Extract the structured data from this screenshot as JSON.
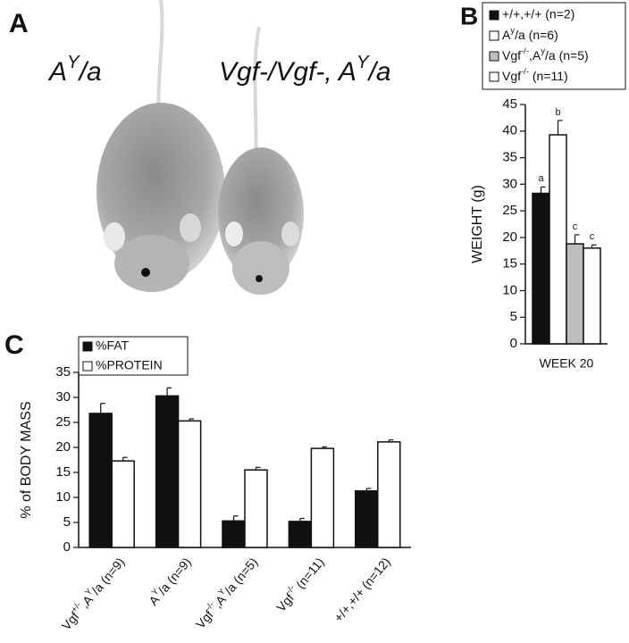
{
  "panels": [
    "A",
    "B",
    "C"
  ],
  "photo_labels": [
    [
      {
        "t": "A"
      },
      {
        "sup": "Y"
      },
      {
        "t": "/a"
      }
    ],
    [
      {
        "t": "Vgf-/Vgf-, A"
      },
      {
        "sup": "Y"
      },
      {
        "t": "/a"
      }
    ]
  ],
  "chart_data": [
    {
      "type": "bar",
      "ylabel": "WEIGHT (g)",
      "categories": [
        "WEEK 20"
      ],
      "ylim": [
        0,
        45
      ],
      "yticks": [
        0,
        5,
        10,
        15,
        20,
        25,
        30,
        35,
        40,
        45
      ],
      "series": [
        {
          "name": "+/+,+/+ (n=2)",
          "color": "#111111",
          "values": [
            28.3
          ],
          "errors": [
            1.2
          ],
          "annotations": [
            "a"
          ]
        },
        {
          "name": [
            {
              "t": "A"
            },
            {
              "sup": "y"
            },
            {
              "t": "/a (n=6)"
            }
          ],
          "color": "#ffffff",
          "values": [
            39.3
          ],
          "errors": [
            2.7
          ],
          "annotations": [
            "b"
          ]
        },
        {
          "name": [
            {
              "t": "Vgf"
            },
            {
              "sup": "-/-"
            },
            {
              "t": ",A"
            },
            {
              "sup": "y"
            },
            {
              "t": "/a (n=5)"
            }
          ],
          "color": "#bdbdbd",
          "values": [
            18.8
          ],
          "errors": [
            1.7
          ],
          "annotations": [
            "c"
          ]
        },
        {
          "name": [
            {
              "t": "Vgf"
            },
            {
              "sup": "-/-"
            },
            {
              "t": " (n=11)"
            }
          ],
          "color": "#ffffff",
          "values": [
            18.0
          ],
          "errors": [
            0.6
          ],
          "annotations": [
            "c"
          ]
        }
      ]
    },
    {
      "type": "bar",
      "ylabel": "% of BODY MASS",
      "categories": [
        [
          {
            "t": "Vgf"
          },
          {
            "sup": "+/-"
          },
          {
            "t": ",A"
          },
          {
            "sup": "Y"
          },
          {
            "t": "/a (n=9)"
          }
        ],
        [
          {
            "t": "A"
          },
          {
            "sup": "Y"
          },
          {
            "t": "/a (n=9)"
          }
        ],
        [
          {
            "t": "Vgf"
          },
          {
            "sup": "-/-"
          },
          {
            "t": ",A"
          },
          {
            "sup": "Y"
          },
          {
            "t": "/a (n=5)"
          }
        ],
        [
          {
            "t": "Vgf"
          },
          {
            "sup": "-/-"
          },
          {
            "t": " (n=11)"
          }
        ],
        "+/+,+/+ (n=12)"
      ],
      "ylim": [
        0,
        35
      ],
      "yticks": [
        0,
        5,
        10,
        15,
        20,
        25,
        30,
        35
      ],
      "series": [
        {
          "name": "%FAT",
          "color": "#111111",
          "values": [
            26.8,
            30.3,
            5.3,
            5.2,
            11.3
          ],
          "errors": [
            2.0,
            1.6,
            1.0,
            0.6,
            0.5
          ]
        },
        {
          "name": "%PROTEIN",
          "color": "#ffffff",
          "values": [
            17.3,
            25.3,
            15.5,
            19.8,
            21.1
          ],
          "errors": [
            0.7,
            0.4,
            0.5,
            0.3,
            0.4
          ]
        }
      ]
    }
  ]
}
